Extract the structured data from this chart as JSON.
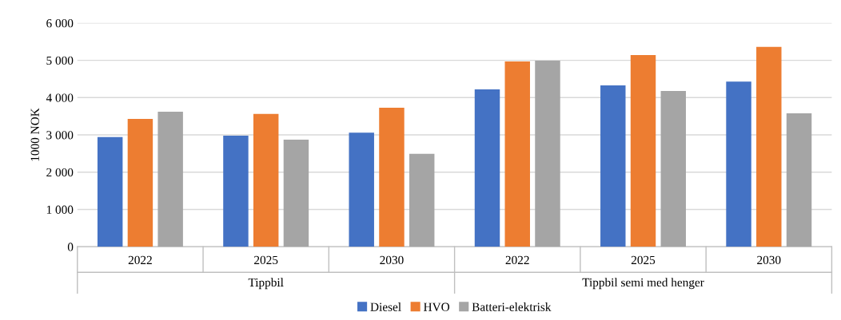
{
  "chart_data": {
    "type": "bar",
    "ylabel": "1000 NOK",
    "categories": [
      "2022",
      "2025",
      "2030",
      "2022",
      "2025",
      "2030"
    ],
    "annotations": [
      "Tippbil",
      "Tippbil semi med henger"
    ],
    "series": [
      {
        "name": "Diesel",
        "color": "#4472c4",
        "values": [
          2940,
          2980,
          3060,
          4220,
          4330,
          4430
        ]
      },
      {
        "name": "HVO",
        "color": "#ed7d31",
        "values": [
          3430,
          3560,
          3730,
          4970,
          5140,
          5360
        ]
      },
      {
        "name": "Batteri-elektrisk",
        "color": "#a5a5a5",
        "values": [
          3620,
          2870,
          2490,
          4990,
          4180,
          3580
        ]
      }
    ],
    "ylim": [
      0,
      6000
    ],
    "yticks": [
      0,
      {
        "value": 1000,
        "label": "1 000"
      },
      {
        "value": 2000,
        "label": "2 000"
      },
      {
        "value": 3000,
        "label": "3 000"
      },
      {
        "value": 4000,
        "label": "4 000"
      },
      {
        "value": 5000,
        "label": "5 000"
      },
      {
        "value": 6000,
        "label": "6 000"
      }
    ],
    "grid": "y",
    "legend": "bottom"
  }
}
